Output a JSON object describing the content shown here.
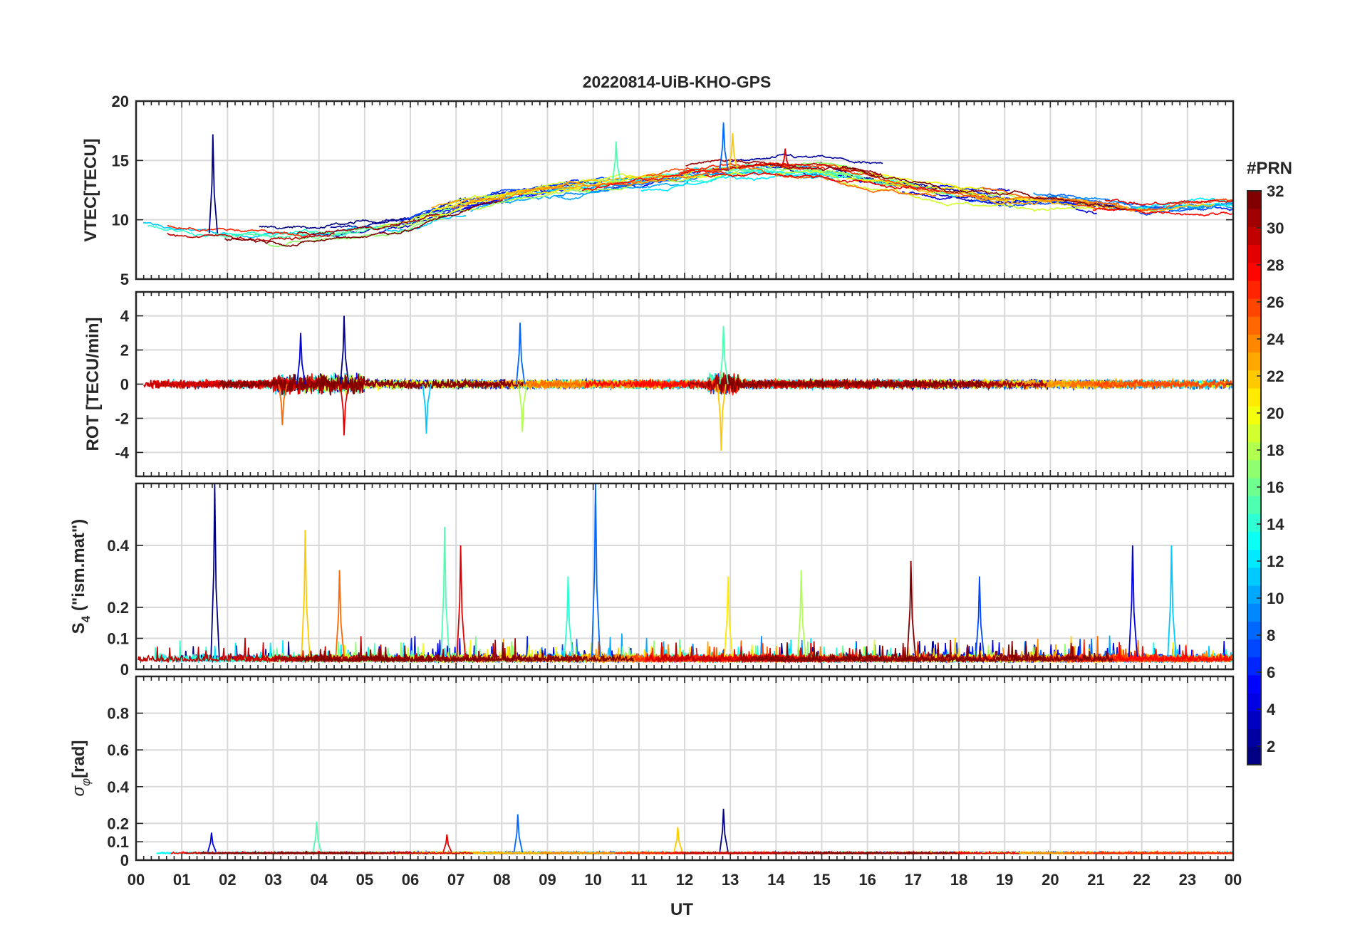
{
  "chart_data": {
    "type": "line",
    "title": "20220814-UiB-KHO-GPS",
    "xlabel": "UT",
    "xlim": [
      0,
      24
    ],
    "x_tick_labels": [
      "00",
      "01",
      "02",
      "03",
      "04",
      "05",
      "06",
      "07",
      "08",
      "09",
      "10",
      "11",
      "12",
      "13",
      "14",
      "15",
      "16",
      "17",
      "18",
      "19",
      "20",
      "21",
      "22",
      "23",
      "00"
    ],
    "grid": true,
    "colorbar": {
      "label": "#PRN",
      "range": [
        1,
        32
      ],
      "colormap": "jet",
      "tick_labels": [
        "2",
        "4",
        "6",
        "8",
        "10",
        "12",
        "14",
        "16",
        "18",
        "20",
        "22",
        "24",
        "26",
        "28",
        "30",
        "32"
      ]
    },
    "panels": [
      {
        "id": "vtec",
        "ylabel": "VTEC[TECU]",
        "ylim": [
          5,
          20
        ],
        "yticks": [
          5,
          10,
          15,
          20
        ],
        "y_tick_labels": [
          "5",
          "10",
          "15",
          "20"
        ],
        "trend_x": [
          0,
          1,
          2,
          3,
          4,
          5,
          6,
          7,
          8,
          9,
          10,
          11,
          12,
          13,
          14,
          15,
          16,
          17,
          18,
          19,
          20,
          21,
          22,
          23,
          24
        ],
        "trend_y": [
          9.5,
          9,
          8.8,
          8.7,
          8.8,
          9.2,
          9.8,
          11.0,
          12.0,
          12.6,
          13.0,
          13.4,
          13.8,
          14.3,
          14.4,
          14.2,
          13.6,
          13.0,
          12.4,
          12.0,
          11.8,
          11.5,
          11.0,
          11.2,
          11.3
        ],
        "noise": 1.2,
        "spikes": [
          [
            1.68,
            17.2
          ],
          [
            12.85,
            18.2
          ],
          [
            10.5,
            16.6
          ],
          [
            13.05,
            17.3
          ],
          [
            14.2,
            16.0
          ]
        ]
      },
      {
        "id": "rot",
        "ylabel": "ROT [TECU/min]",
        "ylim": [
          -5.4,
          5.4
        ],
        "yticks": [
          -4,
          -2,
          0,
          2,
          4
        ],
        "y_tick_labels": [
          "-4",
          "-2",
          "0",
          "2",
          "4"
        ],
        "trend_x": [
          0,
          24
        ],
        "trend_y": [
          0,
          0
        ],
        "noise": 0.35,
        "spikes": [
          [
            4.55,
            4.0
          ],
          [
            8.4,
            3.6
          ],
          [
            12.85,
            3.4
          ],
          [
            12.8,
            -3.9
          ],
          [
            4.55,
            -3.0
          ],
          [
            3.6,
            3.0
          ],
          [
            6.35,
            -2.9
          ],
          [
            8.45,
            -2.8
          ],
          [
            3.2,
            -2.4
          ]
        ]
      },
      {
        "id": "s4",
        "ylabel": "S",
        "ylabel_sub": "4",
        "ylabel_rest": " (\"ism.mat\")",
        "ylim": [
          0,
          0.6
        ],
        "yticks": [
          0,
          0.1,
          0.2,
          0.4
        ],
        "y_tick_labels": [
          "0",
          "0.1",
          "0.2",
          "0.4"
        ],
        "trend_x": [
          0,
          24
        ],
        "trend_y": [
          0.04,
          0.04
        ],
        "noise": 0.03,
        "spikes": [
          [
            1.72,
            0.6
          ],
          [
            10.05,
            0.6
          ],
          [
            6.75,
            0.46
          ],
          [
            3.7,
            0.45
          ],
          [
            7.1,
            0.4
          ],
          [
            21.8,
            0.4
          ],
          [
            22.65,
            0.4
          ],
          [
            14.55,
            0.32
          ],
          [
            4.45,
            0.32
          ],
          [
            16.95,
            0.35
          ],
          [
            18.45,
            0.3
          ],
          [
            9.45,
            0.3
          ],
          [
            12.95,
            0.3
          ]
        ]
      },
      {
        "id": "sigma",
        "ylabel": "σ",
        "ylabel_sub": "φ",
        "ylabel_rest": "[rad]",
        "ylim": [
          0,
          1
        ],
        "yticks": [
          0,
          0.1,
          0.2,
          0.4,
          0.6,
          0.8
        ],
        "y_tick_labels": [
          "0",
          "0.1",
          "0.2",
          "0.4",
          "0.6",
          "0.8"
        ],
        "trend_x": [
          0,
          24
        ],
        "trend_y": [
          0.045,
          0.045
        ],
        "noise": 0.012,
        "spikes": [
          [
            12.85,
            0.28
          ],
          [
            8.35,
            0.25
          ],
          [
            3.95,
            0.21
          ],
          [
            11.85,
            0.18
          ],
          [
            6.8,
            0.14
          ],
          [
            1.65,
            0.15
          ]
        ]
      }
    ]
  }
}
